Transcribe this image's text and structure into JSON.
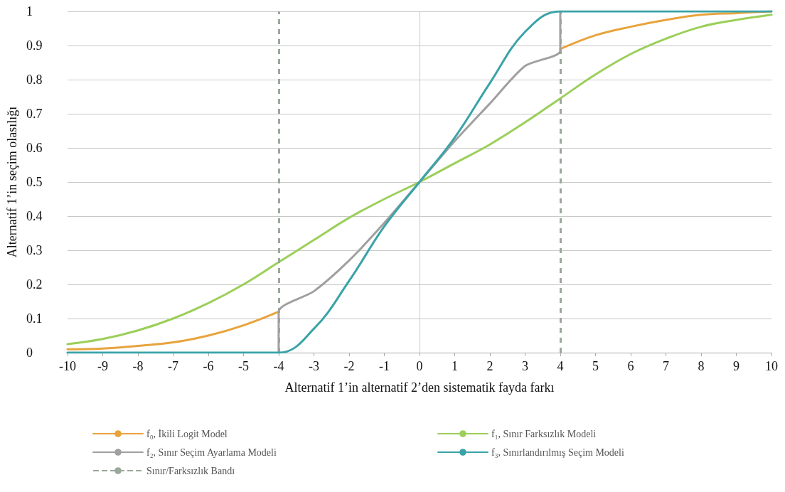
{
  "chart_data": {
    "type": "line",
    "xlabel": "Alternatif 1’in alternatif 2’den sistematik fayda farkı",
    "ylabel": "Alternatif 1’in seçim olasılığı",
    "xlim": [
      -10,
      10
    ],
    "xticks": [
      -10,
      -9,
      -8,
      -7,
      -6,
      -5,
      -4,
      -3,
      -2,
      -1,
      0,
      1,
      2,
      3,
      4,
      5,
      6,
      7,
      8,
      9,
      10
    ],
    "ylim": [
      0,
      1
    ],
    "yticks": [
      0,
      0.1,
      0.2,
      0.3,
      0.4,
      0.5,
      0.6,
      0.7,
      0.8,
      0.9,
      1
    ],
    "grid": "y",
    "legend": "bottom",
    "line_style": "solid",
    "marker": "none",
    "series": [
      {
        "name": "f₀, İkili Logit Model",
        "color": "#e8a33d",
        "x": [
          -10,
          -9,
          -8,
          -7,
          -6,
          -5,
          -4,
          0,
          4,
          5,
          6,
          7,
          8,
          9,
          10
        ],
        "values": [
          0.01,
          0.012,
          0.02,
          0.03,
          0.05,
          0.08,
          0.12,
          null,
          0.89,
          0.93,
          0.955,
          0.975,
          0.99,
          0.995,
          1
        ]
      },
      {
        "name": "f₁, Sınır Farksızlık Modeli",
        "color": "#9bcf5a",
        "x": [
          -10,
          -9,
          -8,
          -7,
          -6,
          -5,
          -4,
          -3,
          -2,
          -1,
          0,
          1,
          2,
          3,
          4,
          5,
          6,
          7,
          8,
          9,
          10
        ],
        "values": [
          0.025,
          0.04,
          0.065,
          0.1,
          0.145,
          0.2,
          0.265,
          0.33,
          0.395,
          0.45,
          0.5,
          0.555,
          0.61,
          0.675,
          0.745,
          0.815,
          0.875,
          0.92,
          0.955,
          0.975,
          0.99
        ]
      },
      {
        "name": "f₂, Sınır Seçim Ayarlama Modeli",
        "color": "#a0a0a0",
        "x": [
          -4,
          -4,
          -3,
          -2,
          -1,
          0,
          1,
          2,
          3,
          4,
          4
        ],
        "values": [
          0,
          0.12,
          0.18,
          0.27,
          0.38,
          0.5,
          0.62,
          0.73,
          0.84,
          0.885,
          1
        ]
      },
      {
        "name": "f₃, Sınırlandırılmış Seçim Modeli",
        "color": "#3aa3a8",
        "x": [
          -10,
          -4,
          -3,
          -2,
          -1,
          0,
          1,
          2,
          3,
          4,
          10
        ],
        "values": [
          0,
          0,
          0.07,
          0.21,
          0.37,
          0.5,
          0.63,
          0.79,
          0.94,
          1,
          1
        ]
      }
    ],
    "ref_lines": [
      {
        "axis": "x",
        "value": 0,
        "color": "#c8c8c8",
        "line_style": "solid"
      },
      {
        "axis": "x",
        "value": -4,
        "label": "Sınır/Farksızlık Bandı",
        "color": "#9aa89a",
        "line_style": "dashed"
      },
      {
        "axis": "x",
        "value": 4,
        "color": "#9aa89a",
        "line_style": "dashed"
      }
    ]
  }
}
